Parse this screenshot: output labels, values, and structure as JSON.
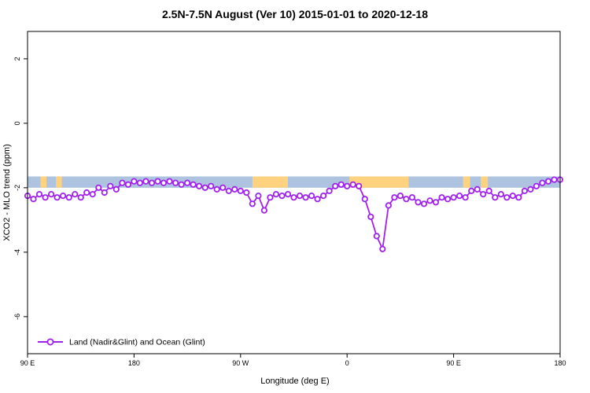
{
  "chart_data": {
    "type": "line",
    "title": "2.5N-7.5N August (Ver 10)   2015-01-01 to 2020-12-18",
    "xlabel": "Longitude (deg E)",
    "ylabel": "XCO2 - MLO trend (ppm)",
    "xlim": [
      90,
      540
    ],
    "ylim": [
      -7.15,
      2.85
    ],
    "grid": false,
    "x_ticks": [
      {
        "pos": 90,
        "label": "90 E"
      },
      {
        "pos": 180,
        "label": "180"
      },
      {
        "pos": 270,
        "label": "90 W"
      },
      {
        "pos": 360,
        "label": "0"
      },
      {
        "pos": 450,
        "label": "90 E"
      },
      {
        "pos": 540,
        "label": "180"
      }
    ],
    "y_ticks": [
      {
        "pos": 2,
        "label": "2"
      },
      {
        "pos": 0,
        "label": "0"
      },
      {
        "pos": -2,
        "label": "-2"
      },
      {
        "pos": -4,
        "label": "-4"
      },
      {
        "pos": -6,
        "label": "-6"
      }
    ],
    "band": {
      "y_top": -1.65,
      "y_bottom": -2.0,
      "ocean_color": "#aec3e0",
      "land_color": "#ffd27f",
      "land_segments": [
        [
          101,
          106
        ],
        [
          114,
          119
        ],
        [
          280,
          310
        ],
        [
          362,
          412
        ],
        [
          458,
          464
        ],
        [
          473,
          479
        ]
      ]
    },
    "legend": [
      {
        "label": "Land (Nadir&Glint) and Ocean (Glint)",
        "color": "#a020f0"
      }
    ],
    "series": [
      {
        "name": "Land (Nadir&Glint) and Ocean (Glint)",
        "color": "#a020f0",
        "marker": "circle",
        "marker_fill": "#ffffff",
        "x": [
          90,
          95,
          100,
          105,
          110,
          115,
          120,
          125,
          130,
          135,
          140,
          145,
          150,
          155,
          160,
          165,
          170,
          175,
          180,
          185,
          190,
          195,
          200,
          205,
          210,
          215,
          220,
          225,
          230,
          235,
          240,
          245,
          250,
          255,
          260,
          265,
          270,
          275,
          280,
          285,
          290,
          295,
          300,
          305,
          310,
          315,
          320,
          325,
          330,
          335,
          340,
          345,
          350,
          355,
          360,
          365,
          370,
          375,
          380,
          385,
          390,
          395,
          400,
          405,
          410,
          415,
          420,
          425,
          430,
          435,
          440,
          445,
          450,
          455,
          460,
          465,
          470,
          475,
          480,
          485,
          490,
          495,
          500,
          505,
          510,
          515,
          520,
          525,
          530,
          535,
          540
        ],
        "y": [
          -2.25,
          -2.35,
          -2.2,
          -2.3,
          -2.2,
          -2.3,
          -2.25,
          -2.3,
          -2.2,
          -2.3,
          -2.15,
          -2.2,
          -2.0,
          -2.15,
          -1.95,
          -2.05,
          -1.85,
          -1.9,
          -1.8,
          -1.85,
          -1.8,
          -1.85,
          -1.8,
          -1.85,
          -1.8,
          -1.85,
          -1.9,
          -1.85,
          -1.9,
          -1.95,
          -2.0,
          -1.95,
          -2.05,
          -2.0,
          -2.1,
          -2.05,
          -2.1,
          -2.15,
          -2.5,
          -2.25,
          -2.7,
          -2.3,
          -2.2,
          -2.25,
          -2.2,
          -2.3,
          -2.25,
          -2.3,
          -2.25,
          -2.35,
          -2.25,
          -2.1,
          -1.95,
          -1.9,
          -1.95,
          -1.9,
          -1.95,
          -2.35,
          -2.9,
          -3.5,
          -3.9,
          -2.55,
          -2.3,
          -2.25,
          -2.35,
          -2.3,
          -2.45,
          -2.5,
          -2.4,
          -2.45,
          -2.3,
          -2.35,
          -2.3,
          -2.25,
          -2.3,
          -2.1,
          -2.05,
          -2.2,
          -2.1,
          -2.3,
          -2.2,
          -2.3,
          -2.25,
          -2.3,
          -2.1,
          -2.05,
          -1.95,
          -1.85,
          -1.8,
          -1.75,
          -1.75
        ]
      }
    ]
  }
}
